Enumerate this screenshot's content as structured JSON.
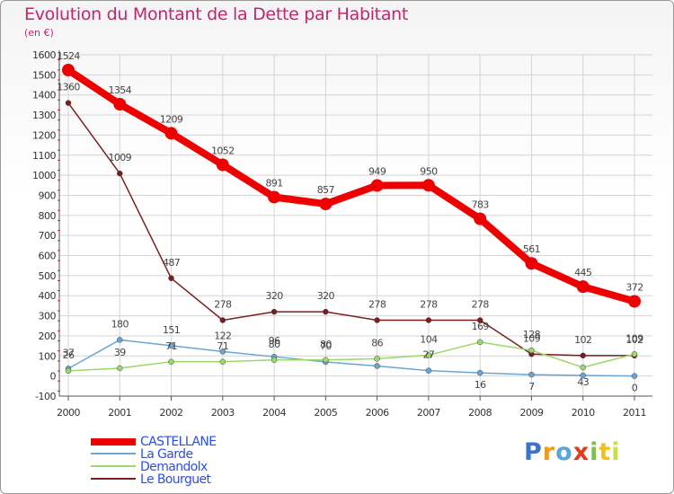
{
  "header": {
    "title": "Evolution du Montant de la Dette par Habitant",
    "subtitle": "(en €)"
  },
  "chart_data": {
    "type": "line",
    "title": "Evolution du Montant de la Dette par Habitant",
    "ylabel": "(en €)",
    "xlabel": "",
    "x": [
      "2000",
      "2001",
      "2002",
      "2003",
      "2004",
      "2005",
      "2006",
      "2007",
      "2008",
      "2009",
      "2010",
      "2011"
    ],
    "ylim": [
      -100,
      1600
    ],
    "yticks": [
      -100,
      0,
      100,
      200,
      300,
      400,
      500,
      600,
      700,
      800,
      900,
      1000,
      1100,
      1200,
      1300,
      1400,
      1500,
      1600
    ],
    "grid": true,
    "series": [
      {
        "name": "Le Bourguet",
        "color": "#7a1f1f",
        "values": [
          1360,
          1009,
          487,
          278,
          320,
          320,
          278,
          278,
          278,
          109,
          102,
          102
        ]
      },
      {
        "name": "La Garde",
        "color": "#6aa5d3",
        "values": [
          37,
          180,
          151,
          122,
          96,
          70,
          50,
          27,
          16,
          7,
          3,
          0
        ]
      },
      {
        "name": "Demandolx",
        "color": "#9ad96a",
        "values": [
          26,
          39,
          71,
          71,
          80,
          80,
          86,
          104,
          169,
          128,
          43,
          109
        ]
      },
      {
        "name": "CASTELLANE",
        "color": "#ee0000",
        "values": [
          1524,
          1354,
          1209,
          1052,
          891,
          857,
          949,
          950,
          783,
          561,
          445,
          372
        ]
      }
    ],
    "point_labels": {
      "Le Bourguet": [
        "1360",
        "1009",
        "487",
        "278",
        "320",
        "320",
        "278",
        "278",
        "278",
        "109",
        "102",
        "102"
      ],
      "La Garde": [
        "37",
        "180",
        "151",
        "122",
        "96",
        "70",
        "",
        "27",
        "16",
        "7",
        "",
        "0"
      ],
      "Demandolx": [
        "26",
        "39",
        "71",
        "71",
        "80",
        "80",
        "86",
        "104",
        "169",
        "128",
        "43",
        "109"
      ],
      "CASTELLANE": [
        "1524",
        "1354",
        "1209",
        "1052",
        "891",
        "857",
        "949",
        "950",
        "783",
        "561",
        "445",
        "372"
      ]
    }
  },
  "legend": [
    {
      "name": "CASTELLANE",
      "color": "#ee0000"
    },
    {
      "name": "La Garde",
      "color": "#6aa5d3"
    },
    {
      "name": "Demandolx",
      "color": "#9ad96a"
    },
    {
      "name": "Le Bourguet",
      "color": "#7a1f1f"
    }
  ],
  "logo": {
    "text": "Proxiti",
    "letters": [
      "P",
      "r",
      "o",
      "x",
      "i",
      "t",
      "i"
    ]
  }
}
